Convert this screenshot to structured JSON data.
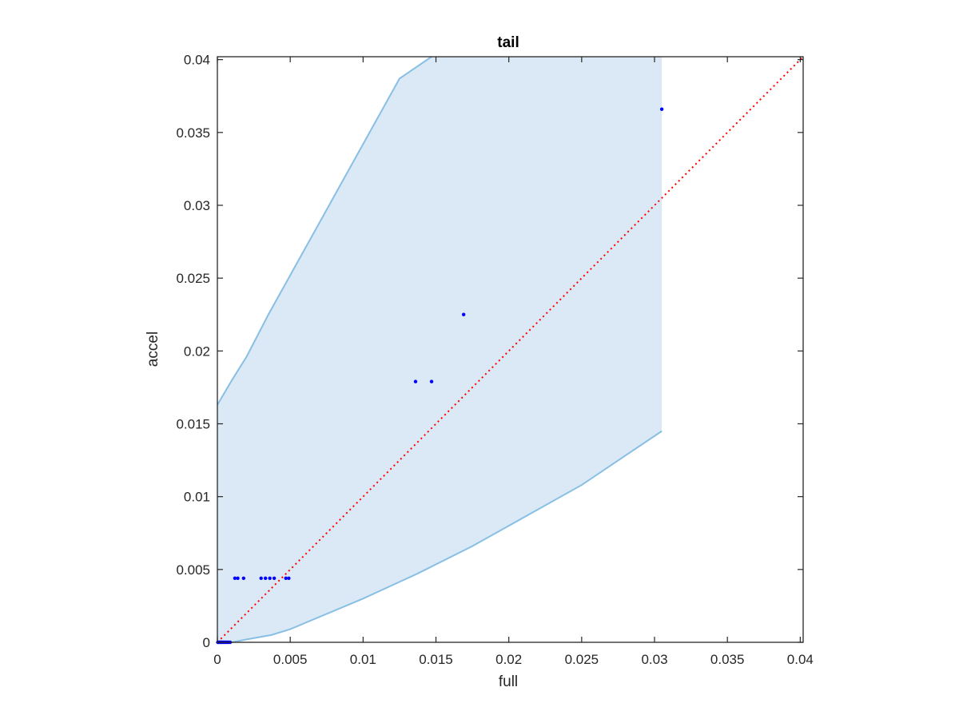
{
  "chart_data": {
    "type": "scatter",
    "title": "tail",
    "xlabel": "full",
    "ylabel": "accel",
    "xlim": [
      0,
      0.0402
    ],
    "ylim": [
      0,
      0.0402
    ],
    "xticks": [
      0,
      0.005,
      0.01,
      0.015,
      0.02,
      0.025,
      0.03,
      0.035,
      0.04
    ],
    "yticks": [
      0,
      0.005,
      0.01,
      0.015,
      0.02,
      0.025,
      0.03,
      0.035,
      0.04
    ],
    "xticklabels": [
      "0",
      "0.005",
      "0.01",
      "0.015",
      "0.02",
      "0.025",
      "0.03",
      "0.035",
      "0.04"
    ],
    "yticklabels": [
      "0",
      "0.005",
      "0.01",
      "0.015",
      "0.02",
      "0.025",
      "0.03",
      "0.035",
      "0.04"
    ],
    "grid": false,
    "legend": "none",
    "colors": {
      "points": "#0000ff",
      "band_fill": "#dae9f5",
      "band_edge": "#88bfe4",
      "reference_line": "#ff0000",
      "axis": "#262626"
    },
    "points": [
      {
        "x": 3e-05,
        "y": 0.0
      },
      {
        "x": 8e-05,
        "y": 0.0
      },
      {
        "x": 0.00015,
        "y": 0.0
      },
      {
        "x": 0.00022,
        "y": 0.0
      },
      {
        "x": 0.0003,
        "y": 0.0
      },
      {
        "x": 0.00038,
        "y": 0.0
      },
      {
        "x": 0.00046,
        "y": 0.0
      },
      {
        "x": 0.00055,
        "y": 0.0
      },
      {
        "x": 0.00065,
        "y": 0.0
      },
      {
        "x": 0.00075,
        "y": 0.0
      },
      {
        "x": 0.00088,
        "y": 0.0
      },
      {
        "x": 0.0012,
        "y": 0.0044
      },
      {
        "x": 0.0014,
        "y": 0.0044
      },
      {
        "x": 0.0018,
        "y": 0.0044
      },
      {
        "x": 0.003,
        "y": 0.0044
      },
      {
        "x": 0.0033,
        "y": 0.0044
      },
      {
        "x": 0.0036,
        "y": 0.0044
      },
      {
        "x": 0.0039,
        "y": 0.0044
      },
      {
        "x": 0.0047,
        "y": 0.0044
      },
      {
        "x": 0.0049,
        "y": 0.0044
      },
      {
        "x": 0.0136,
        "y": 0.0179
      },
      {
        "x": 0.0147,
        "y": 0.0179
      },
      {
        "x": 0.0169,
        "y": 0.0225
      },
      {
        "x": 0.0305,
        "y": 0.0366
      }
    ],
    "band_upper": [
      {
        "x": 0.0,
        "y": 0.0163
      },
      {
        "x": 0.001,
        "y": 0.018
      },
      {
        "x": 0.002,
        "y": 0.0196
      },
      {
        "x": 0.0035,
        "y": 0.0225
      },
      {
        "x": 0.005,
        "y": 0.0252
      },
      {
        "x": 0.0075,
        "y": 0.0297
      },
      {
        "x": 0.01,
        "y": 0.0342
      },
      {
        "x": 0.0125,
        "y": 0.0387
      },
      {
        "x": 0.0147,
        "y": 0.0402
      }
    ],
    "band_lower": [
      {
        "x": 0.0,
        "y": 0.0
      },
      {
        "x": 0.001,
        "y": 0.0
      },
      {
        "x": 0.002,
        "y": 0.0002
      },
      {
        "x": 0.0037,
        "y": 0.0005
      },
      {
        "x": 0.005,
        "y": 0.0009
      },
      {
        "x": 0.01,
        "y": 0.003
      },
      {
        "x": 0.0137,
        "y": 0.0047
      },
      {
        "x": 0.0175,
        "y": 0.0066
      },
      {
        "x": 0.025,
        "y": 0.0108
      },
      {
        "x": 0.0305,
        "y": 0.0145
      }
    ],
    "band_right_x": 0.0305,
    "reference_line": {
      "from": [
        0,
        0
      ],
      "to": [
        0.0402,
        0.0402
      ],
      "style": "dotted"
    }
  }
}
